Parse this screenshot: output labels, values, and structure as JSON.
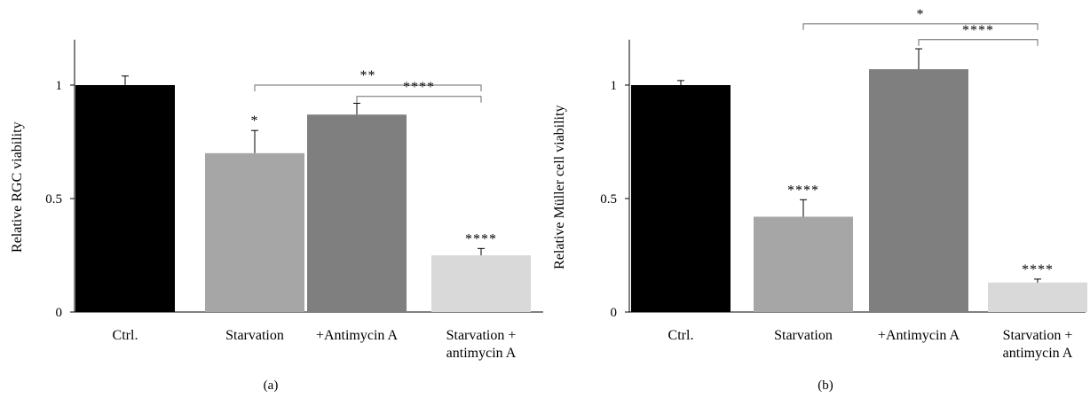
{
  "figure": {
    "panels": [
      "(a)",
      "(b)"
    ]
  },
  "chart_data": [
    {
      "type": "bar",
      "panel_label": "(a)",
      "categories": [
        [
          "Ctrl."
        ],
        [
          "Starvation"
        ],
        [
          "+Antimycin A"
        ],
        [
          "Starvation +",
          "antimycin A"
        ]
      ],
      "values": [
        1.0,
        0.7,
        0.87,
        0.25
      ],
      "errors": [
        0.04,
        0.1,
        0.05,
        0.03
      ],
      "colors": [
        "#000000",
        "#a6a6a6",
        "#7f7f7f",
        "#d9d9d9"
      ],
      "ylabel": "Relative RGC viability",
      "xlabel": "",
      "ylim": [
        0,
        1.2
      ],
      "yticks": [
        0,
        0.5,
        1
      ],
      "ytick_labels": [
        "0",
        "0.5",
        "1"
      ],
      "bar_annotations": [
        {
          "bar": 1,
          "text": "*"
        },
        {
          "bar": 3,
          "text": "****"
        }
      ],
      "comparisons": [
        {
          "from": 1,
          "to": 3,
          "text": "**",
          "level": 1.0
        },
        {
          "from": 2,
          "to": 3,
          "text": "****",
          "level": 0.95
        }
      ]
    },
    {
      "type": "bar",
      "panel_label": "(b)",
      "categories": [
        [
          "Ctrl."
        ],
        [
          "Starvation"
        ],
        [
          "+Antimycin A"
        ],
        [
          "Starvation +",
          "antimycin A"
        ]
      ],
      "values": [
        1.0,
        0.42,
        1.07,
        0.13
      ],
      "errors": [
        0.02,
        0.075,
        0.09,
        0.015
      ],
      "colors": [
        "#000000",
        "#a6a6a6",
        "#7f7f7f",
        "#d9d9d9"
      ],
      "ylabel": "Relative Müller cell viability",
      "xlabel": "",
      "ylim": [
        0,
        1.2
      ],
      "yticks": [
        0,
        0.5,
        1
      ],
      "ytick_labels": [
        "0",
        "0.5",
        "1"
      ],
      "bar_annotations": [
        {
          "bar": 1,
          "text": "****"
        },
        {
          "bar": 3,
          "text": "****"
        }
      ],
      "comparisons": [
        {
          "from": 1,
          "to": 3,
          "text": "*",
          "level": 1.27
        },
        {
          "from": 2,
          "to": 3,
          "text": "****",
          "level": 1.2
        }
      ]
    }
  ]
}
